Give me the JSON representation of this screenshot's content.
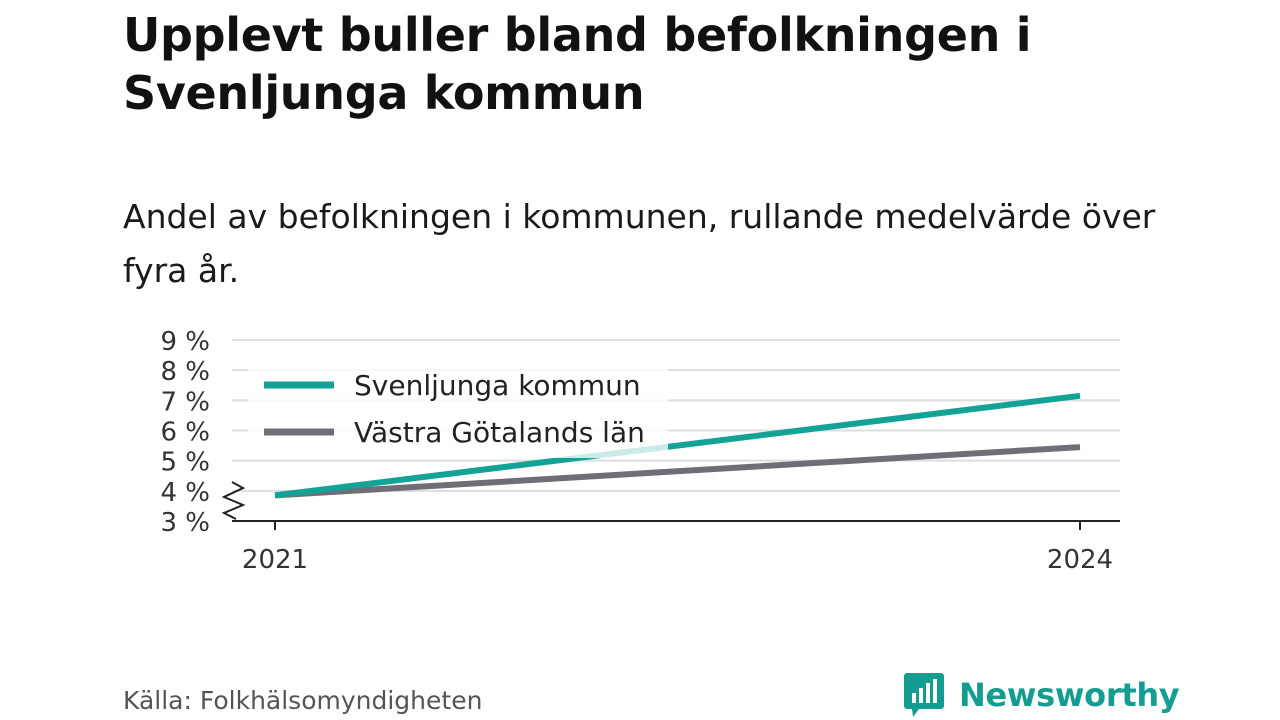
{
  "title": "Upplevt buller bland befolkningen i Svenljunga kommun",
  "subtitle": "Andel av befolkningen i kommunen, rullande medelvärde över fyra år.",
  "source": "Källa: Folkhälsomyndigheten",
  "brand": "Newsworthy",
  "colors": {
    "kommun": "#12a396",
    "lan": "#6e6e76",
    "grid": "#dddddd",
    "axis": "#222222",
    "brand": "#139c90"
  },
  "chart_data": {
    "type": "line",
    "title": "",
    "xlabel": "",
    "ylabel": "",
    "x": [
      2021,
      2024
    ],
    "x_tick_labels": [
      "2021",
      "2024"
    ],
    "ylim": [
      3,
      9
    ],
    "y_ticks": [
      3,
      4,
      5,
      6,
      7,
      8,
      9
    ],
    "y_tick_labels": [
      "3 %",
      "4 %",
      "5 %",
      "6 %",
      "7 %",
      "8 %",
      "9 %"
    ],
    "y_axis_break": true,
    "grid": true,
    "legend_position": "top-left",
    "series": [
      {
        "name": "Svenljunga kommun",
        "values": [
          3.85,
          7.15
        ]
      },
      {
        "name": "Västra Götalands län",
        "values": [
          3.85,
          5.45
        ]
      }
    ]
  }
}
